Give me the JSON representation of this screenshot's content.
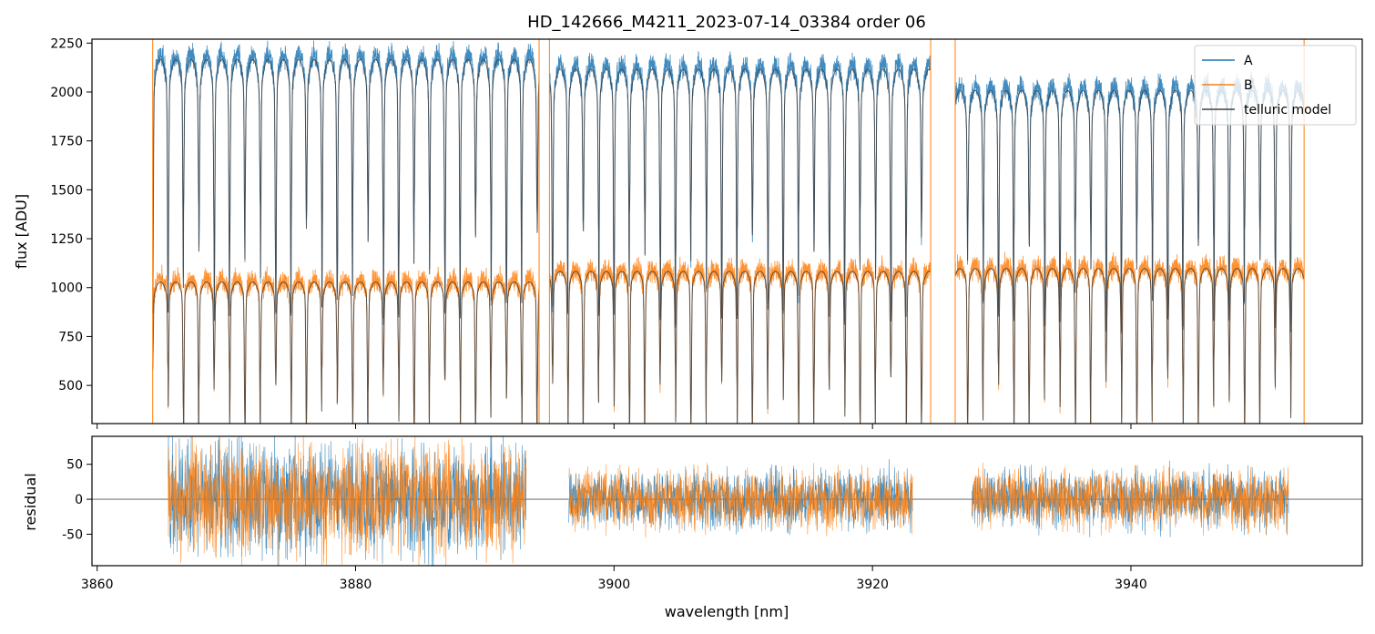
{
  "chart_data": {
    "type": "line",
    "title": "HD_142666_M4211_2023-07-14_03384  order 06",
    "xlabel": "wavelength [nm]",
    "xlim": [
      3859.6,
      3957.9
    ],
    "x_ticks": [
      3860,
      3880,
      3900,
      3920,
      3940
    ],
    "panels": [
      {
        "id": "flux",
        "ylabel": "flux [ADU]",
        "ylim": [
          305,
          2270
        ],
        "y_ticks": [
          500,
          750,
          1000,
          1250,
          1500,
          1750,
          2000,
          2250
        ],
        "legend": {
          "placement": "upper right",
          "entries": [
            "A",
            "B",
            "telluric model"
          ]
        },
        "segments_nm": [
          [
            3864.3,
            3894.2
          ],
          [
            3895.0,
            3924.5
          ],
          [
            3926.4,
            3953.4
          ]
        ],
        "edge_spikes_nm": [
          3864.3,
          3894.2,
          3895.0,
          3924.5,
          3926.4,
          3953.4
        ],
        "absorption_period_nm": 1.19,
        "series": [
          {
            "name": "A",
            "color": "#1f77b4",
            "continuum_by_segment": [
              2190,
              2140,
              2030
            ],
            "line_depth_fraction": 0.55
          },
          {
            "name": "B",
            "color": "#ff7f0e",
            "continuum_by_segment": [
              1040,
              1095,
              1110
            ],
            "line_depth_fraction": 0.72
          },
          {
            "name": "telluric model",
            "color": "#404040"
          }
        ]
      },
      {
        "id": "residual",
        "ylabel": "residual",
        "ylim": [
          -95,
          90
        ],
        "y_ticks": [
          -50,
          0,
          50
        ],
        "zero_line": true,
        "segments_nm": [
          [
            3865.5,
            3893.2
          ],
          [
            3896.5,
            3923.1
          ],
          [
            3927.7,
            3952.2
          ]
        ],
        "series": [
          {
            "name": "A",
            "color": "#1f77b4",
            "noise_sigma_by_segment": [
              40,
              20,
              20
            ]
          },
          {
            "name": "B",
            "color": "#ff7f0e",
            "noise_sigma_by_segment": [
              38,
              20,
              20
            ]
          }
        ]
      }
    ]
  }
}
